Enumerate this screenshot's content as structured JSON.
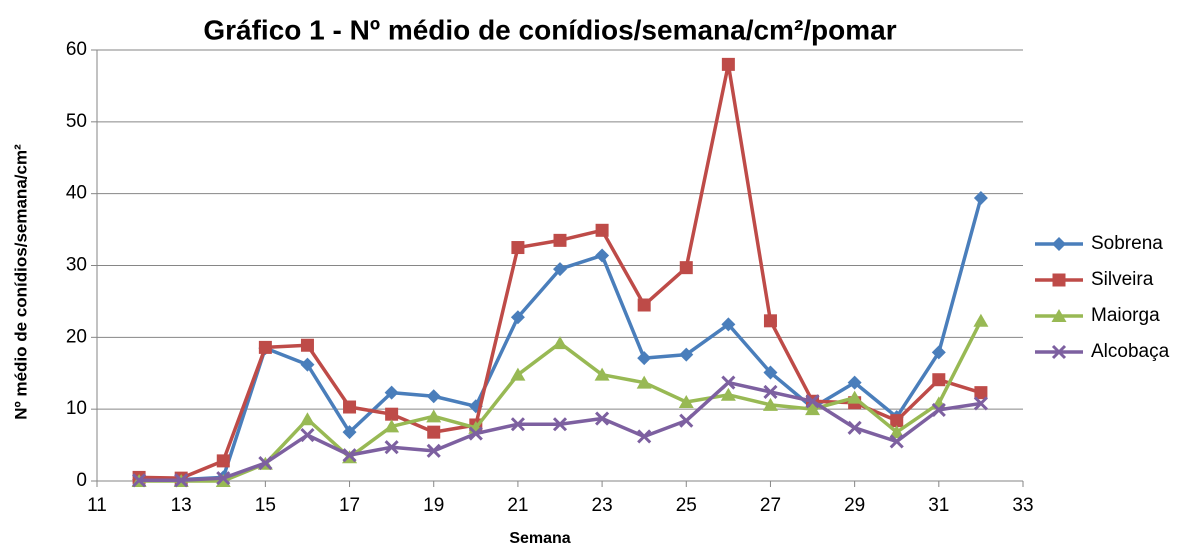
{
  "chart_data": {
    "type": "line",
    "title": "Gráfico 1  - Nº médio de conídios/semana/cm²/pomar",
    "x_label": "Semana",
    "y_label": "Nº médio de conídios/semana/cm²",
    "x": [
      12,
      13,
      14,
      15,
      16,
      17,
      18,
      19,
      20,
      21,
      22,
      23,
      24,
      25,
      26,
      27,
      28,
      29,
      30,
      31,
      32
    ],
    "series": [
      {
        "name": "Sobrena",
        "color": "#4a7ebb",
        "marker": "diamond",
        "values": [
          0.2,
          0.2,
          0.5,
          18.5,
          16.2,
          6.8,
          12.3,
          11.8,
          10.4,
          22.8,
          29.5,
          31.4,
          17.1,
          17.6,
          21.8,
          15.1,
          10.2,
          13.7,
          8.9,
          17.9,
          39.4
        ]
      },
      {
        "name": "Silveira",
        "color": "#be4b48",
        "marker": "square",
        "values": [
          0.5,
          0.4,
          2.8,
          18.6,
          18.9,
          10.3,
          9.3,
          6.8,
          7.8,
          32.5,
          33.5,
          34.9,
          24.5,
          29.7,
          58,
          22.3,
          11.1,
          10.9,
          8.4,
          14.1,
          12.3
        ]
      },
      {
        "name": "Maiorga",
        "color": "#98b954",
        "marker": "triangle",
        "values": [
          0,
          0,
          0,
          2.4,
          8.6,
          3.3,
          7.6,
          9.0,
          7.4,
          14.8,
          19.2,
          14.8,
          13.7,
          11.0,
          12.0,
          10.6,
          10.0,
          11.6,
          6.8,
          10.8,
          22.3
        ]
      },
      {
        "name": "Alcobaça",
        "color": "#7d60a0",
        "marker": "x",
        "values": [
          0.1,
          0.1,
          0.4,
          2.5,
          6.4,
          3.6,
          4.7,
          4.2,
          6.6,
          7.9,
          7.9,
          8.7,
          6.2,
          8.4,
          13.7,
          12.4,
          11.1,
          7.4,
          5.5,
          9.9,
          10.8
        ]
      }
    ],
    "xlim": [
      11,
      33
    ],
    "xticks": [
      11,
      13,
      15,
      17,
      19,
      21,
      23,
      25,
      27,
      29,
      31,
      33
    ],
    "ylim": [
      0,
      60
    ],
    "yticks": [
      0,
      10,
      20,
      30,
      40,
      50,
      60
    ],
    "grid": true,
    "legend": "right"
  }
}
